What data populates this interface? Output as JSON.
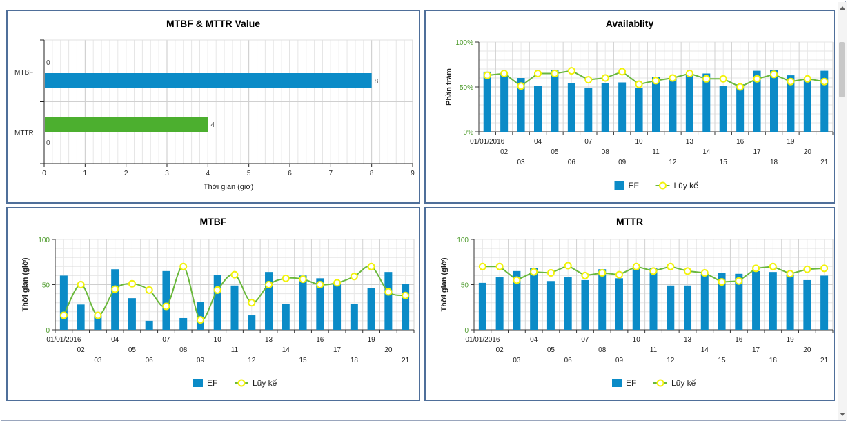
{
  "chart_data": [
    {
      "id": "mtbf_mttr",
      "type": "bar",
      "orientation": "horizontal",
      "title": "MTBF & MTTR Value",
      "xlabel": "Thời gian (giờ)",
      "xlim": [
        0,
        9
      ],
      "xticks": [
        "0",
        "1",
        "2",
        "3",
        "4",
        "5",
        "6",
        "7",
        "8",
        "9"
      ],
      "categories": [
        "MTBF",
        "MTTR"
      ],
      "series": [
        {
          "values": [
            8,
            4
          ],
          "colors": [
            "#0b8bc7",
            "#4caf2f"
          ],
          "labels": [
            "8",
            "4"
          ]
        },
        {
          "values": [
            0,
            0
          ],
          "labels": [
            "0",
            "0"
          ]
        }
      ],
      "grid": true
    },
    {
      "id": "availability",
      "type": "bar",
      "title": "Availablity",
      "ylabel": "Phần trăm",
      "ylim": [
        0,
        100
      ],
      "yticks": [
        "0%",
        "50%",
        "100%"
      ],
      "categories": [
        "01/01/2016",
        "02",
        "03",
        "04",
        "05",
        "06",
        "07",
        "08",
        "09",
        "10",
        "11",
        "12",
        "13",
        "14",
        "15",
        "16",
        "17",
        "18",
        "19",
        "20",
        "21"
      ],
      "series": [
        {
          "name": "EF",
          "type": "bar",
          "color": "#0b8bc7",
          "values": [
            67,
            64,
            60,
            51,
            69,
            54,
            49,
            54,
            55,
            49,
            61,
            60,
            64,
            65,
            51,
            53,
            68,
            69,
            63,
            58,
            68
          ]
        },
        {
          "name": "Lũy kế",
          "type": "line",
          "color": "#6ab83c",
          "marker": "#f2f20a",
          "values": [
            63,
            65,
            51,
            65,
            65,
            68,
            58,
            60,
            67,
            53,
            57,
            60,
            65,
            59,
            59,
            50,
            59,
            64,
            56,
            59,
            56
          ]
        }
      ],
      "legend": "bottom-center",
      "grid": true
    },
    {
      "id": "mtbf",
      "type": "bar",
      "title": "MTBF",
      "ylabel": "Thời gian (giờ)",
      "ylim": [
        0,
        100
      ],
      "yticks": [
        "0",
        "50",
        "100"
      ],
      "categories": [
        "01/01/2016",
        "02",
        "03",
        "04",
        "05",
        "06",
        "07",
        "08",
        "09",
        "10",
        "11",
        "12",
        "13",
        "14",
        "15",
        "16",
        "17",
        "18",
        "19",
        "20",
        "21"
      ],
      "series": [
        {
          "name": "EF",
          "type": "bar",
          "color": "#0b8bc7",
          "values": [
            60,
            28,
            17,
            67,
            35,
            10,
            65,
            13,
            31,
            61,
            49,
            16,
            64,
            29,
            60,
            57,
            51,
            29,
            46,
            64,
            51
          ]
        },
        {
          "name": "Lũy kế",
          "type": "line",
          "color": "#6ab83c",
          "marker": "#f2f20a",
          "smooth": true,
          "values": [
            16,
            50,
            16,
            45,
            51,
            44,
            26,
            70,
            11,
            44,
            61,
            30,
            50,
            57,
            56,
            50,
            52,
            59,
            70,
            42,
            38
          ]
        }
      ],
      "legend": "bottom-center",
      "grid": true
    },
    {
      "id": "mttr",
      "type": "bar",
      "title": "MTTR",
      "ylabel": "Thời gian (giờ)",
      "ylim": [
        0,
        100
      ],
      "yticks": [
        "0",
        "50",
        "100"
      ],
      "categories": [
        "01/01/2016",
        "02",
        "03",
        "04",
        "05",
        "06",
        "07",
        "08",
        "09",
        "10",
        "11",
        "12",
        "13",
        "14",
        "15",
        "16",
        "17",
        "18",
        "19",
        "20",
        "21"
      ],
      "series": [
        {
          "name": "EF",
          "type": "bar",
          "color": "#0b8bc7",
          "values": [
            52,
            58,
            65,
            68,
            54,
            58,
            55,
            67,
            57,
            69,
            68,
            49,
            49,
            62,
            63,
            62,
            65,
            64,
            61,
            55,
            60
          ]
        },
        {
          "name": "Lũy kế",
          "type": "line",
          "color": "#6ab83c",
          "marker": "#f2f20a",
          "values": [
            70,
            70,
            55,
            64,
            63,
            71,
            60,
            63,
            61,
            70,
            65,
            70,
            65,
            63,
            53,
            54,
            68,
            70,
            62,
            67,
            68
          ]
        }
      ],
      "legend": "bottom-center",
      "grid": true
    }
  ]
}
